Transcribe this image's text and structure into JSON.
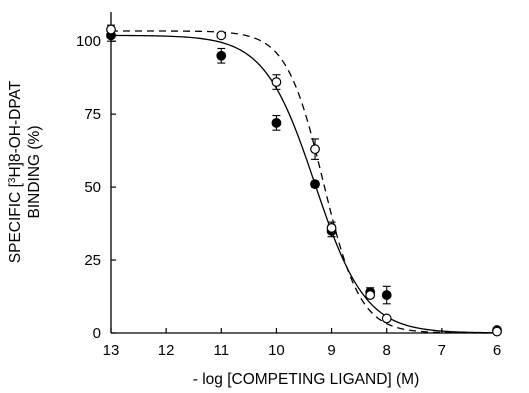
{
  "chart_data": {
    "type": "scatter",
    "xlabel": "- log [COMPETING LIGAND] (M)",
    "ylabel_line1_pre": "SPECIFIC [",
    "ylabel_line1_sup": "3",
    "ylabel_line1_post": "H]8-OH-DPAT",
    "ylabel_line2": "BINDING (%)",
    "xlim": [
      13,
      6
    ],
    "ylim": [
      0,
      110
    ],
    "x_ticks": [
      13,
      12,
      11,
      10,
      9,
      8,
      7,
      6
    ],
    "y_ticks": [
      0,
      25,
      50,
      75,
      100
    ],
    "grid": false,
    "series": [
      {
        "marker": "filled-circle",
        "fit_line": "solid",
        "points": [
          {
            "x": 13.0,
            "y": 102,
            "err": 2
          },
          {
            "x": 11.0,
            "y": 95,
            "err": 2.5
          },
          {
            "x": 10.0,
            "y": 72,
            "err": 2.5
          },
          {
            "x": 9.3,
            "y": 51,
            "err": 1
          },
          {
            "x": 9.0,
            "y": 35,
            "err": 2
          },
          {
            "x": 8.3,
            "y": 14,
            "err": 1.5
          },
          {
            "x": 8.0,
            "y": 13,
            "err": 3
          },
          {
            "x": 6.0,
            "y": 1,
            "err": 0
          }
        ],
        "fit": {
          "top": 102,
          "bottom": 0,
          "logIC50": 9.3,
          "hill": 0.95
        }
      },
      {
        "marker": "open-circle",
        "fit_line": "dashed",
        "points": [
          {
            "x": 13.0,
            "y": 104,
            "err": 1.5
          },
          {
            "x": 11.0,
            "y": 102,
            "err": 0
          },
          {
            "x": 10.0,
            "y": 86,
            "err": 2.5
          },
          {
            "x": 9.3,
            "y": 63,
            "err": 3.5
          },
          {
            "x": 9.0,
            "y": 36,
            "err": 2
          },
          {
            "x": 8.3,
            "y": 13,
            "err": 1
          },
          {
            "x": 8.0,
            "y": 5,
            "err": 0
          },
          {
            "x": 6.0,
            "y": 0.5,
            "err": 0
          }
        ],
        "fit": {
          "top": 103.5,
          "bottom": 0,
          "logIC50": 9.15,
          "hill": 1.3
        }
      }
    ]
  }
}
